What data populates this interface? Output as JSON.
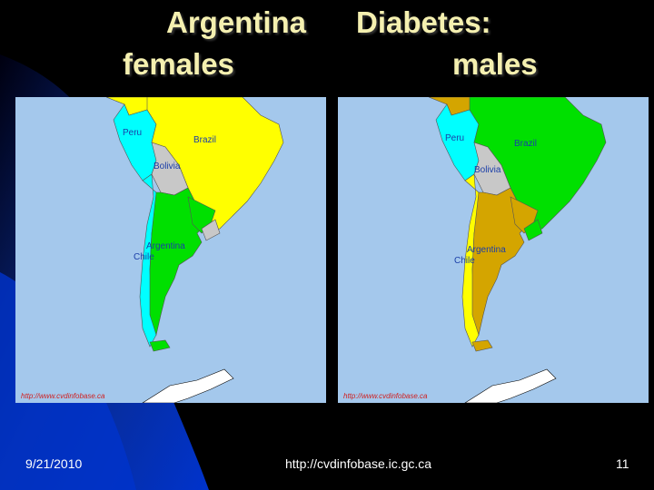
{
  "slide": {
    "title_line1_left": "Argentina",
    "title_line1_right": "Diabetes:",
    "title_line2_left": "females",
    "title_line2_right": "males"
  },
  "maps": [
    {
      "labels": {
        "peru": "Peru",
        "brazil": "Brazil",
        "bolivia": "Bolivia",
        "argentina": "Argentina",
        "chile": "Chile"
      },
      "source": "http://www.cvdinfobase.ca",
      "colors": {
        "brazil": "#ffff00",
        "argentina": "#00e000",
        "peru": "#00ffff",
        "bolivia": "#c8c8c8",
        "chile": "#00ffff",
        "north": "#ffff00"
      }
    },
    {
      "labels": {
        "peru": "Peru",
        "brazil": "Brazil",
        "bolivia": "Bolivia",
        "argentina": "Argentina",
        "chile": "Chile"
      },
      "source": "http://www.cvdinfobase.ca",
      "colors": {
        "brazil": "#00e000",
        "argentina": "#d4a500",
        "peru": "#00ffff",
        "bolivia": "#c8c8c8",
        "chile": "#ffff00",
        "north": "#d4a500"
      }
    }
  ],
  "footer": {
    "date": "9/21/2010",
    "url": "http://cvdinfobase.ic.gc.ca",
    "page": "11"
  }
}
